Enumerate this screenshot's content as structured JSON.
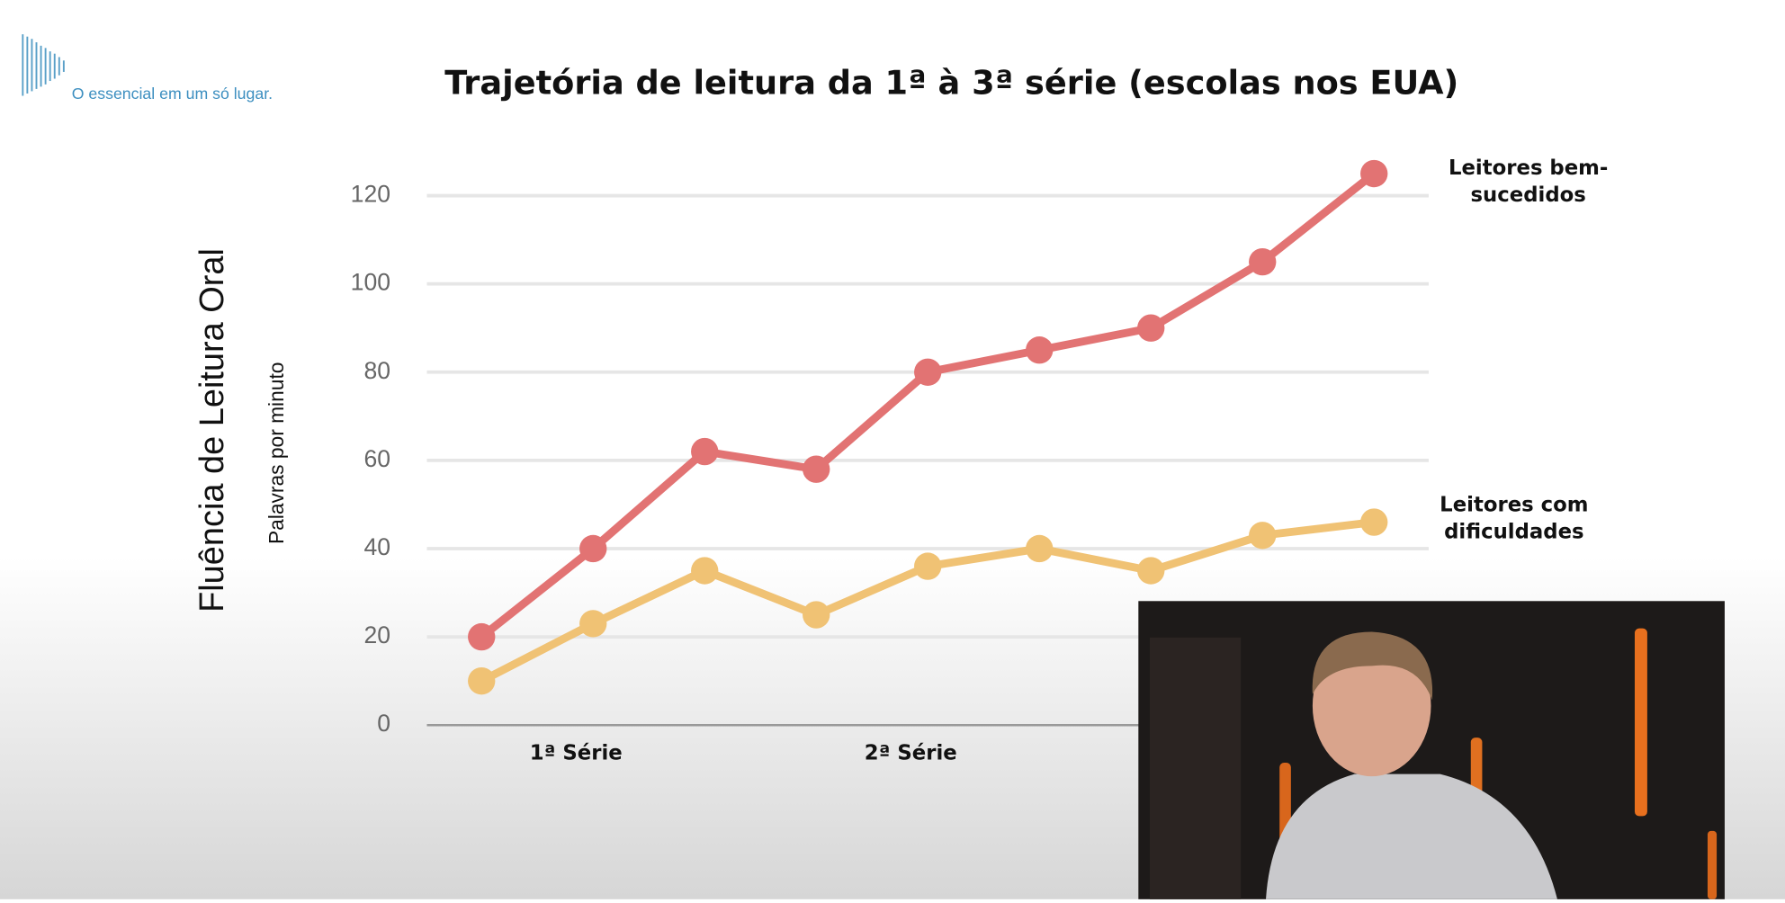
{
  "logo": {
    "tagline": "O essencial em um só lugar."
  },
  "chart_data": {
    "type": "line",
    "title": "Trajetória de leitura da 1ª à 3ª série (escolas nos EUA)",
    "y_label": "Fluência de Leitura Oral",
    "y_sublabel": "Palavras por minuto",
    "categories": [
      null,
      "1ª Série",
      null,
      null,
      "2ª Série",
      null,
      null,
      null,
      null
    ],
    "series": [
      {
        "name": "Leitores bem-sucedidos",
        "color": "#e27373",
        "values": [
          20,
          40,
          62,
          58,
          80,
          85,
          90,
          105,
          125
        ]
      },
      {
        "name": "Leitores com dificuldades",
        "color": "#f0c274",
        "values": [
          10,
          23,
          35,
          25,
          36,
          40,
          35,
          43,
          46
        ]
      }
    ],
    "ylim": [
      0,
      130
    ],
    "yticks": [
      0,
      20,
      40,
      60,
      80,
      100,
      120
    ],
    "grid": true
  }
}
